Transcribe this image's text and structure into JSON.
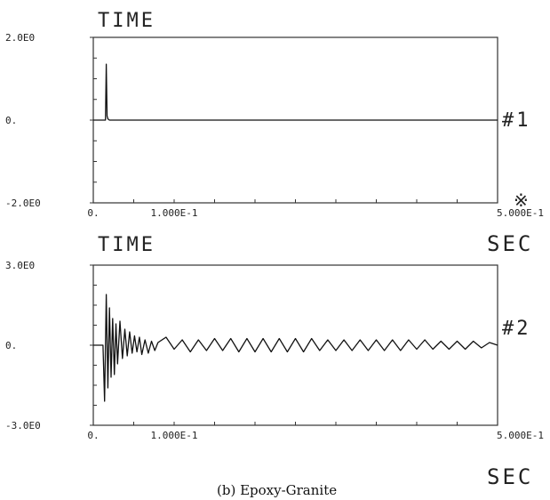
{
  "caption": "(b) Epoxy-Granite",
  "chart_data": [
    {
      "type": "line",
      "title": "TIME",
      "channel_label": "#1",
      "marker": "※",
      "xlabel": "SEC",
      "xlim": [
        0,
        0.5
      ],
      "ylim": [
        -2,
        2
      ],
      "x_tick_labels": [
        "0.",
        "1.000E-1",
        "5.000E-1"
      ],
      "x_tick_values": [
        0,
        0.1,
        0.5
      ],
      "y_tick_labels": [
        "2.0E0",
        "0.",
        "-2.0E0"
      ],
      "y_tick_values": [
        2,
        0,
        -2
      ],
      "grid": false,
      "series": [
        {
          "x": [
            0,
            0.015,
            0.016,
            0.017,
            0.018,
            0.02,
            0.5
          ],
          "y": [
            0,
            0,
            1.35,
            0.1,
            0.03,
            0,
            0
          ]
        }
      ]
    },
    {
      "type": "line",
      "title": "TIME",
      "channel_label": "#2",
      "xlabel": "SEC",
      "xlim": [
        0,
        0.5
      ],
      "ylim": [
        -3,
        3
      ],
      "x_tick_labels": [
        "0.",
        "1.000E-1",
        "5.000E-1"
      ],
      "x_tick_values": [
        0,
        0.1,
        0.5
      ],
      "y_tick_labels": [
        "3.0E0",
        "0.",
        "-3.0E0"
      ],
      "y_tick_values": [
        3,
        0,
        -3
      ],
      "grid": false,
      "series": [
        {
          "x": [
            0,
            0.012,
            0.014,
            0.016,
            0.018,
            0.02,
            0.022,
            0.024,
            0.026,
            0.028,
            0.03,
            0.033,
            0.036,
            0.039,
            0.042,
            0.045,
            0.048,
            0.051,
            0.054,
            0.057,
            0.06,
            0.064,
            0.068,
            0.072,
            0.076,
            0.08,
            0.09,
            0.1,
            0.11,
            0.12,
            0.13,
            0.14,
            0.15,
            0.16,
            0.17,
            0.18,
            0.19,
            0.2,
            0.21,
            0.22,
            0.23,
            0.24,
            0.25,
            0.26,
            0.27,
            0.28,
            0.29,
            0.3,
            0.31,
            0.32,
            0.33,
            0.34,
            0.35,
            0.36,
            0.37,
            0.38,
            0.39,
            0.4,
            0.41,
            0.42,
            0.43,
            0.44,
            0.45,
            0.46,
            0.47,
            0.48,
            0.49,
            0.5
          ],
          "y": [
            0,
            0,
            -2.1,
            1.9,
            -1.6,
            1.4,
            -1.2,
            1.0,
            -1.1,
            0.8,
            -0.7,
            0.9,
            -0.5,
            0.6,
            -0.4,
            0.5,
            -0.3,
            0.35,
            -0.25,
            0.3,
            -0.35,
            0.2,
            -0.3,
            0.15,
            -0.2,
            0.1,
            0.3,
            -0.15,
            0.2,
            -0.25,
            0.2,
            -0.2,
            0.25,
            -0.2,
            0.25,
            -0.25,
            0.25,
            -0.25,
            0.25,
            -0.25,
            0.25,
            -0.25,
            0.25,
            -0.25,
            0.25,
            -0.2,
            0.2,
            -0.2,
            0.2,
            -0.2,
            0.2,
            -0.2,
            0.2,
            -0.2,
            0.2,
            -0.2,
            0.2,
            -0.15,
            0.2,
            -0.15,
            0.15,
            -0.15,
            0.15,
            -0.15,
            0.15,
            -0.1,
            0.1,
            0
          ]
        }
      ]
    }
  ]
}
